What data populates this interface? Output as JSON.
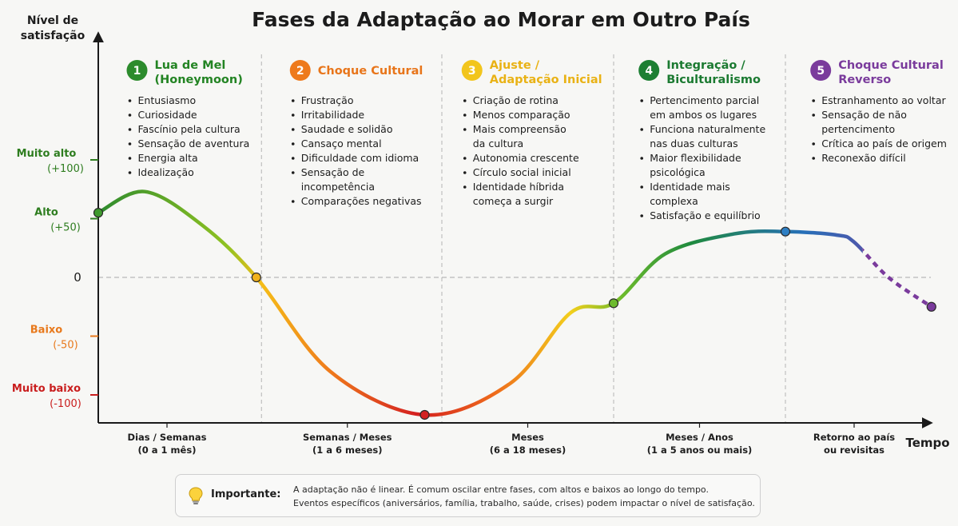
{
  "title": "Fases da Adaptação ao Morar em Outro País",
  "chart_data": {
    "type": "line",
    "ylabel": [
      "Nível de",
      "satisfação"
    ],
    "xlabel": "Tempo",
    "ylim": [
      -120,
      165
    ],
    "y_ticks": [
      {
        "value": 100,
        "lines": [
          "Muito alto",
          "(+100)"
        ],
        "color": "#2e7d1f"
      },
      {
        "value": 50,
        "lines": [
          "Alto",
          "(+50)"
        ],
        "color": "#2e7d1f"
      },
      {
        "value": 0,
        "lines": [
          "0"
        ],
        "color": "#1d1d1d"
      },
      {
        "value": -50,
        "lines": [
          "Baixo",
          "(-50)"
        ],
        "color": "#e8791c"
      },
      {
        "value": -100,
        "lines": [
          "Muito baixo",
          "(-100)"
        ],
        "color": "#c91d1d"
      }
    ],
    "x_categories": [
      {
        "lines": [
          "Dias / Semanas",
          "(0 a 1 mês)"
        ],
        "pos": 0.4
      },
      {
        "lines": [
          "Semanas / Meses",
          "(1 a 6 meses)"
        ],
        "pos": 1.45
      },
      {
        "lines": [
          "Meses",
          "(6 a 18 meses)"
        ],
        "pos": 2.5
      },
      {
        "lines": [
          "Meses / Anos",
          "(1 a 5 anos ou mais)"
        ],
        "pos": 3.5
      },
      {
        "lines": [
          "Retorno ao país",
          "ou revisitas"
        ],
        "pos": 4.4
      }
    ],
    "phase_boundaries": [
      0.95,
      2.0,
      3.0,
      4.0
    ],
    "series": [
      {
        "x": [
          0,
          0.27,
          0.6,
          0.92,
          1.35,
          1.9,
          2.4,
          2.75,
          3.0,
          3.3,
          3.7,
          4.0,
          4.3,
          4.4,
          4.6,
          4.85
        ],
        "y": [
          55,
          73,
          45,
          0,
          -80,
          -117,
          -90,
          -30,
          -22,
          20,
          37,
          39,
          36,
          30,
          0,
          -25
        ],
        "dashed_from_x": 4.45
      }
    ],
    "markers": [
      {
        "x": 0,
        "y": 55,
        "color": "#3f9a2d"
      },
      {
        "x": 0.92,
        "y": 0,
        "color": "#f2b21a"
      },
      {
        "x": 1.9,
        "y": -117,
        "color": "#d32222"
      },
      {
        "x": 3.0,
        "y": -22,
        "color": "#6dbb2f"
      },
      {
        "x": 4.0,
        "y": 39,
        "color": "#2e7fc4"
      },
      {
        "x": 4.85,
        "y": -25,
        "color": "#7a3b9c"
      }
    ],
    "gradient_stops": [
      {
        "x": 0,
        "color": "#2e8b2e"
      },
      {
        "x": 0.75,
        "color": "#8fc222"
      },
      {
        "x": 0.95,
        "color": "#f5bd18"
      },
      {
        "x": 1.35,
        "color": "#ef7a1c"
      },
      {
        "x": 1.85,
        "color": "#d42020"
      },
      {
        "x": 2.3,
        "color": "#ee6a1c"
      },
      {
        "x": 2.75,
        "color": "#f3cf1c"
      },
      {
        "x": 3.05,
        "color": "#6cbb2c"
      },
      {
        "x": 3.45,
        "color": "#1f8a3e"
      },
      {
        "x": 4.1,
        "color": "#2770b8"
      },
      {
        "x": 4.85,
        "color": "#7a3b9c"
      }
    ],
    "phases": [
      {
        "num": "1",
        "title": [
          "Lua de Mel",
          "(Honeymoon)"
        ],
        "color": "#2c8b2c",
        "title_color": "#238423",
        "x": 0.1,
        "items": [
          [
            "Entusiasmo"
          ],
          [
            "Curiosidade"
          ],
          [
            "Fascínio pela cultura"
          ],
          [
            "Sensação de aventura"
          ],
          [
            "Energia alta"
          ],
          [
            "Idealização"
          ]
        ]
      },
      {
        "num": "2",
        "title": [
          "Choque Cultural"
        ],
        "color": "#ee7a1c",
        "title_color": "#e8751a",
        "x": 1.05,
        "items": [
          [
            "Frustração"
          ],
          [
            "Irritabilidade"
          ],
          [
            "Saudade e solidão"
          ],
          [
            "Cansaço mental"
          ],
          [
            "Dificuldade com idioma"
          ],
          [
            "Sensação de",
            "incompetência"
          ],
          [
            "Comparações negativas"
          ]
        ]
      },
      {
        "num": "3",
        "title": [
          "Ajuste /",
          "Adaptação Inicial"
        ],
        "color": "#f2c51c",
        "title_color": "#e9b215",
        "x": 2.05,
        "items": [
          [
            "Criação de rotina"
          ],
          [
            "Menos comparação"
          ],
          [
            "Mais compreensão",
            "da cultura"
          ],
          [
            "Autonomia crescente"
          ],
          [
            "Círculo social inicial"
          ],
          [
            "Identidade híbrida",
            "começa a surgir"
          ]
        ]
      },
      {
        "num": "4",
        "title": [
          "Integração /",
          "Biculturalismo"
        ],
        "color": "#1d7f33",
        "title_color": "#1b7a31",
        "x": 3.08,
        "items": [
          [
            "Pertencimento parcial",
            "em ambos os lugares"
          ],
          [
            "Funciona naturalmente",
            "nas duas culturas"
          ],
          [
            "Maior flexibilidade",
            "psicológica"
          ],
          [
            "Identidade mais",
            "complexa"
          ],
          [
            "Satisfação e equilíbrio"
          ]
        ]
      },
      {
        "num": "5",
        "title": [
          "Choque Cultural",
          "Reverso"
        ],
        "color": "#7a3b9c",
        "title_color": "#7a3b9c",
        "x": 4.08,
        "items": [
          [
            "Estranhamento ao voltar"
          ],
          [
            "Sensação de não",
            "pertencimento"
          ],
          [
            "Crítica ao país de origem"
          ],
          [
            "Reconexão difícil"
          ]
        ]
      }
    ]
  },
  "note": {
    "icon": "lightbulb-icon",
    "label": "Importante:",
    "line1": "A adaptação não é linear. É comum oscilar entre fases, com altos e baixos ao longo do tempo.",
    "line2": "Eventos específicos (aniversários, família, trabalho, saúde, crises) podem impactar o nível de satisfação."
  }
}
